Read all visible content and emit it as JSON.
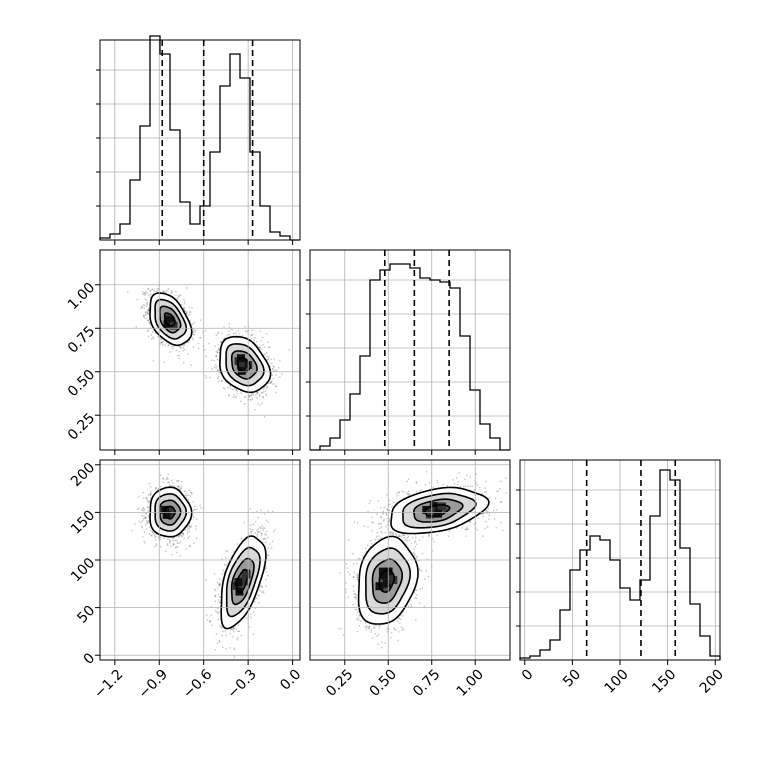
{
  "chart_data": {
    "type": "corner",
    "variables": [
      "",
      "",
      ""
    ],
    "colors": {
      "line": "#000000",
      "grid": "#b0b0b0",
      "scatter": "#555555",
      "fill_dark": "#000000"
    },
    "panels": [
      {
        "id": "hist-x",
        "type": "histogram",
        "xlim": [
          -1.3,
          0.05
        ],
        "ylim": [
          0,
          1
        ],
        "bin_edges": [
          -1.3,
          -1.2325,
          -1.165,
          -1.0975,
          -1.03,
          -0.9625,
          -0.895,
          -0.8275,
          -0.76,
          -0.6925,
          -0.625,
          -0.5575,
          -0.49,
          -0.4225,
          -0.355,
          -0.2875,
          -0.22,
          -0.1525,
          -0.085,
          -0.0175,
          0.05
        ],
        "counts": [
          0.01,
          0.03,
          0.08,
          0.3,
          0.57,
          1.02,
          0.93,
          0.55,
          0.19,
          0.08,
          0.17,
          0.44,
          0.77,
          0.93,
          0.81,
          0.44,
          0.17,
          0.04,
          0.02,
          0.0
        ],
        "quantiles": [
          -0.88,
          -0.6,
          -0.27
        ],
        "xticks": [
          -1.2,
          -0.9,
          -0.6,
          -0.3,
          0.0
        ],
        "xtick_labels": [
          "−1.2",
          "−0.9",
          "−0.6",
          "−0.3",
          "0.0"
        ]
      },
      {
        "id": "hist-y",
        "type": "histogram",
        "xlim": [
          0.05,
          1.2
        ],
        "ylim": [
          0,
          1
        ],
        "bin_edges": [
          0.05,
          0.1075,
          0.165,
          0.2225,
          0.28,
          0.3375,
          0.395,
          0.4525,
          0.51,
          0.5675,
          0.625,
          0.6825,
          0.74,
          0.7975,
          0.855,
          0.9125,
          0.97,
          1.0275,
          1.085,
          1.1425,
          1.2
        ],
        "counts": [
          0.0,
          0.02,
          0.06,
          0.15,
          0.28,
          0.47,
          0.85,
          0.9,
          0.93,
          0.93,
          0.91,
          0.86,
          0.85,
          0.84,
          0.81,
          0.57,
          0.3,
          0.13,
          0.06,
          0.0
        ],
        "quantiles": [
          0.48,
          0.65,
          0.85
        ],
        "xticks": [
          0.25,
          0.5,
          0.75,
          1.0
        ],
        "xtick_labels": [
          "0.25",
          "0.50",
          "0.75",
          "1.00"
        ],
        "yticks": [
          0.25,
          0.5,
          0.75,
          1.0
        ],
        "ytick_labels": [
          "0.25",
          "0.50",
          "0.75",
          "1.00"
        ]
      },
      {
        "id": "hist-z",
        "type": "histogram",
        "xlim": [
          -5,
          205
        ],
        "ylim": [
          0,
          1
        ],
        "bin_edges": [
          -5,
          5.5,
          16,
          26.5,
          37,
          47.5,
          58,
          68.5,
          79,
          89.5,
          100,
          110.5,
          121,
          131.5,
          142,
          152.5,
          163,
          173.5,
          184,
          194.5,
          205
        ],
        "counts": [
          0.01,
          0.02,
          0.05,
          0.1,
          0.25,
          0.45,
          0.55,
          0.62,
          0.6,
          0.5,
          0.36,
          0.3,
          0.4,
          0.72,
          0.95,
          0.9,
          0.56,
          0.28,
          0.12,
          0.02
        ],
        "quantiles": [
          65,
          122,
          158
        ],
        "xticks": [
          0,
          50,
          100,
          150,
          200
        ],
        "xtick_labels": [
          "0",
          "50",
          "100",
          "150",
          "200"
        ],
        "yticks": [
          0,
          50,
          100,
          150,
          200
        ],
        "ytick_labels": [
          "0",
          "50",
          "100",
          "150",
          "200"
        ]
      },
      {
        "id": "xy",
        "type": "contour",
        "xlim": [
          -1.3,
          0.05
        ],
        "ylim": [
          0.05,
          1.2
        ],
        "clusters": [
          {
            "cx": -0.83,
            "cy": 0.8,
            "sx": 0.07,
            "sy": 0.075,
            "rho": -0.42
          },
          {
            "cx": -0.33,
            "cy": 0.54,
            "sx": 0.085,
            "sy": 0.08,
            "rho": -0.28
          }
        ]
      },
      {
        "id": "xz",
        "type": "contour",
        "xlim": [
          -1.3,
          0.05
        ],
        "ylim": [
          -5,
          205
        ],
        "clusters": [
          {
            "cx": -0.83,
            "cy": 150,
            "sx": 0.07,
            "sy": 13,
            "rho": 0.0
          },
          {
            "cx": -0.34,
            "cy": 78,
            "sx": 0.075,
            "sy": 24,
            "rho": 0.55
          }
        ]
      },
      {
        "id": "yz",
        "type": "contour",
        "xlim": [
          0.05,
          1.2
        ],
        "ylim": [
          -5,
          205
        ],
        "clusters": [
          {
            "cx": 0.78,
            "cy": 152,
            "sx": 0.14,
            "sy": 12,
            "rho": 0.35
          },
          {
            "cx": 0.49,
            "cy": 78,
            "sx": 0.085,
            "sy": 23,
            "rho": 0.2
          }
        ]
      }
    ]
  }
}
